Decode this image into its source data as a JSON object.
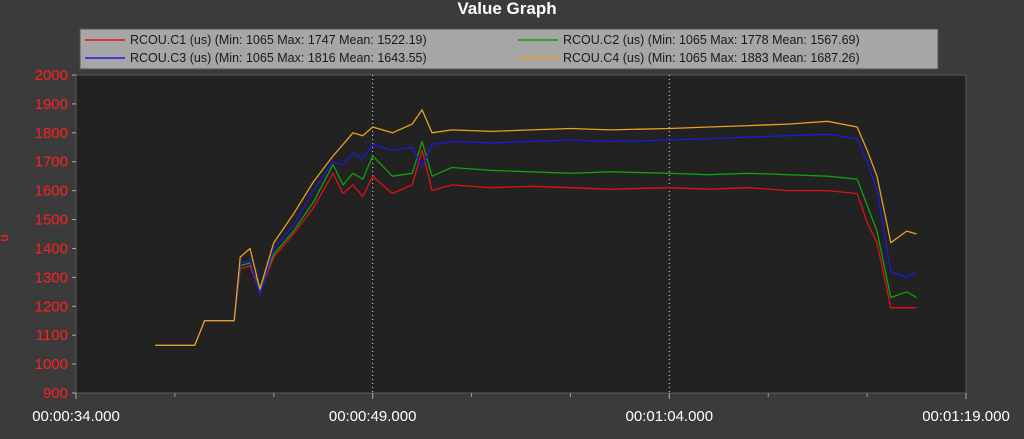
{
  "chart_data": {
    "type": "line",
    "title": "Value Graph",
    "xlabel": "",
    "ylabel": "u",
    "xlim": [
      "00:00:34.000",
      "00:01:19.000"
    ],
    "ylim": [
      900,
      2000
    ],
    "y_ticks": [
      900,
      1000,
      1100,
      1200,
      1300,
      1400,
      1500,
      1600,
      1700,
      1800,
      1900,
      2000
    ],
    "x_ticks": [
      "00:00:34.000",
      "00:00:49.000",
      "00:01:04.000",
      "00:01:19.000"
    ],
    "grid": "vertical dotted lines at labeled x ticks",
    "legend_position": "top",
    "colors": {
      "background": "#3b3b3b",
      "plot_area": "#222222",
      "legend_box": "#a6a6a6",
      "axis_text_y": "#ff2020",
      "axis_text_x": "#ffffff"
    },
    "series": [
      {
        "name": "RCOU.C1",
        "legend": "RCOU.C1 (us) (Min: 1065 Max: 1747 Mean: 1522.19)",
        "color": "#e01010",
        "points": [
          [
            "00:00:38.000",
            1065
          ],
          [
            "00:00:40.000",
            1065
          ],
          [
            "00:00:40.500",
            1150
          ],
          [
            "00:00:42.000",
            1150
          ],
          [
            "00:00:42.300",
            1330
          ],
          [
            "00:00:42.800",
            1340
          ],
          [
            "00:00:43.300",
            1250
          ],
          [
            "00:00:44.000",
            1370
          ],
          [
            "00:00:45.000",
            1450
          ],
          [
            "00:00:46.000",
            1540
          ],
          [
            "00:00:47.000",
            1660
          ],
          [
            "00:00:47.500",
            1590
          ],
          [
            "00:00:48.000",
            1620
          ],
          [
            "00:00:48.500",
            1580
          ],
          [
            "00:00:49.000",
            1650
          ],
          [
            "00:00:50.000",
            1590
          ],
          [
            "00:00:51.000",
            1620
          ],
          [
            "00:00:51.500",
            1740
          ],
          [
            "00:00:52.000",
            1600
          ],
          [
            "00:00:53.000",
            1620
          ],
          [
            "00:00:55.000",
            1610
          ],
          [
            "00:00:57.000",
            1615
          ],
          [
            "00:00:59.000",
            1610
          ],
          [
            "00:01:01.000",
            1605
          ],
          [
            "00:01:04.000",
            1610
          ],
          [
            "00:01:06.000",
            1605
          ],
          [
            "00:01:08.000",
            1610
          ],
          [
            "00:01:10.000",
            1600
          ],
          [
            "00:01:12.000",
            1600
          ],
          [
            "00:01:13.500",
            1590
          ],
          [
            "00:01:14.000",
            1490
          ],
          [
            "00:01:14.500",
            1420
          ],
          [
            "00:01:15.200",
            1195
          ],
          [
            "00:01:16.500",
            1195
          ]
        ]
      },
      {
        "name": "RCOU.C2",
        "legend": "RCOU.C2 (us) (Min: 1065 Max: 1778 Mean: 1567.69)",
        "color": "#10a010",
        "points": [
          [
            "00:00:38.000",
            1065
          ],
          [
            "00:00:40.000",
            1065
          ],
          [
            "00:00:40.500",
            1150
          ],
          [
            "00:00:42.000",
            1150
          ],
          [
            "00:00:42.300",
            1340
          ],
          [
            "00:00:42.800",
            1350
          ],
          [
            "00:00:43.300",
            1260
          ],
          [
            "00:00:44.000",
            1380
          ],
          [
            "00:00:45.000",
            1460
          ],
          [
            "00:00:46.000",
            1560
          ],
          [
            "00:00:47.000",
            1690
          ],
          [
            "00:00:47.500",
            1620
          ],
          [
            "00:00:48.000",
            1660
          ],
          [
            "00:00:48.500",
            1640
          ],
          [
            "00:00:49.000",
            1720
          ],
          [
            "00:00:50.000",
            1650
          ],
          [
            "00:00:51.000",
            1660
          ],
          [
            "00:00:51.500",
            1770
          ],
          [
            "00:00:52.000",
            1650
          ],
          [
            "00:00:53.000",
            1680
          ],
          [
            "00:00:55.000",
            1670
          ],
          [
            "00:00:57.000",
            1665
          ],
          [
            "00:00:59.000",
            1660
          ],
          [
            "00:01:01.000",
            1665
          ],
          [
            "00:01:04.000",
            1660
          ],
          [
            "00:01:06.000",
            1655
          ],
          [
            "00:01:08.000",
            1660
          ],
          [
            "00:01:10.000",
            1655
          ],
          [
            "00:01:12.000",
            1650
          ],
          [
            "00:01:13.500",
            1640
          ],
          [
            "00:01:14.000",
            1550
          ],
          [
            "00:01:14.500",
            1460
          ],
          [
            "00:01:15.200",
            1230
          ],
          [
            "00:01:16.000",
            1250
          ],
          [
            "00:01:16.500",
            1230
          ]
        ]
      },
      {
        "name": "RCOU.C3",
        "legend": "RCOU.C3 (us) (Min: 1065 Max: 1816 Mean: 1643.55)",
        "color": "#1a1ae0",
        "points": [
          [
            "00:00:38.000",
            1065
          ],
          [
            "00:00:40.000",
            1065
          ],
          [
            "00:00:40.500",
            1150
          ],
          [
            "00:00:42.000",
            1150
          ],
          [
            "00:00:42.300",
            1350
          ],
          [
            "00:00:42.800",
            1360
          ],
          [
            "00:00:43.300",
            1240
          ],
          [
            "00:00:44.000",
            1400
          ],
          [
            "00:00:45.000",
            1480
          ],
          [
            "00:00:46.000",
            1600
          ],
          [
            "00:00:47.000",
            1700
          ],
          [
            "00:00:47.500",
            1690
          ],
          [
            "00:00:48.000",
            1730
          ],
          [
            "00:00:48.500",
            1710
          ],
          [
            "00:00:49.000",
            1760
          ],
          [
            "00:00:50.000",
            1740
          ],
          [
            "00:00:51.000",
            1750
          ],
          [
            "00:00:51.500",
            1680
          ],
          [
            "00:00:52.000",
            1760
          ],
          [
            "00:00:53.000",
            1770
          ],
          [
            "00:00:55.000",
            1765
          ],
          [
            "00:00:57.000",
            1770
          ],
          [
            "00:00:59.000",
            1775
          ],
          [
            "00:01:01.000",
            1770
          ],
          [
            "00:01:04.000",
            1775
          ],
          [
            "00:01:06.000",
            1780
          ],
          [
            "00:01:08.000",
            1785
          ],
          [
            "00:01:10.000",
            1790
          ],
          [
            "00:01:12.000",
            1795
          ],
          [
            "00:01:13.500",
            1780
          ],
          [
            "00:01:14.000",
            1700
          ],
          [
            "00:01:14.500",
            1600
          ],
          [
            "00:01:15.200",
            1320
          ],
          [
            "00:01:16.000",
            1300
          ],
          [
            "00:01:16.500",
            1320
          ]
        ]
      },
      {
        "name": "RCOU.C4",
        "legend": "RCOU.C4 (us) (Min: 1065 Max: 1883 Mean: 1687.26)",
        "color": "#e8a020",
        "points": [
          [
            "00:00:38.000",
            1065
          ],
          [
            "00:00:40.000",
            1065
          ],
          [
            "00:00:40.500",
            1150
          ],
          [
            "00:00:42.000",
            1150
          ],
          [
            "00:00:42.300",
            1370
          ],
          [
            "00:00:42.800",
            1400
          ],
          [
            "00:00:43.300",
            1260
          ],
          [
            "00:00:44.000",
            1420
          ],
          [
            "00:00:45.000",
            1520
          ],
          [
            "00:00:46.000",
            1630
          ],
          [
            "00:00:47.000",
            1720
          ],
          [
            "00:00:47.500",
            1760
          ],
          [
            "00:00:48.000",
            1800
          ],
          [
            "00:00:48.500",
            1790
          ],
          [
            "00:00:49.000",
            1820
          ],
          [
            "00:00:50.000",
            1800
          ],
          [
            "00:00:51.000",
            1830
          ],
          [
            "00:00:51.500",
            1880
          ],
          [
            "00:00:52.000",
            1800
          ],
          [
            "00:00:53.000",
            1810
          ],
          [
            "00:00:55.000",
            1805
          ],
          [
            "00:00:57.000",
            1810
          ],
          [
            "00:00:59.000",
            1815
          ],
          [
            "00:01:01.000",
            1810
          ],
          [
            "00:01:04.000",
            1815
          ],
          [
            "00:01:06.000",
            1820
          ],
          [
            "00:01:08.000",
            1825
          ],
          [
            "00:01:10.000",
            1830
          ],
          [
            "00:01:12.000",
            1840
          ],
          [
            "00:01:13.500",
            1820
          ],
          [
            "00:01:14.000",
            1740
          ],
          [
            "00:01:14.500",
            1650
          ],
          [
            "00:01:15.200",
            1420
          ],
          [
            "00:01:16.000",
            1460
          ],
          [
            "00:01:16.500",
            1450
          ]
        ]
      }
    ]
  }
}
